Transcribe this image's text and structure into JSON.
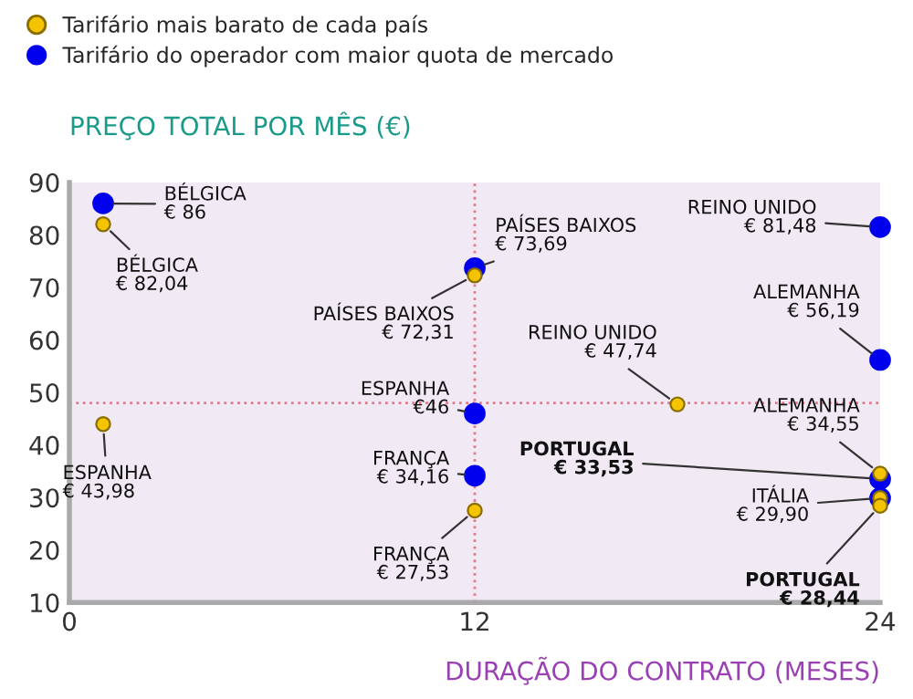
{
  "chart_data": {
    "type": "scatter",
    "xlabel": "DURAÇÃO DO CONTRATO (MESES)",
    "ylabel": "PREÇO TOTAL POR MÊS (€)",
    "xlim": [
      0,
      24
    ],
    "ylim": [
      10,
      90
    ],
    "xticks": [
      0,
      12,
      24
    ],
    "yticks": [
      10,
      20,
      30,
      40,
      50,
      60,
      70,
      80,
      90
    ],
    "grid": false,
    "legend": "top left",
    "marker": "circle",
    "series": [
      {
        "name": "Tarifário mais barato de cada país",
        "color": "#f5c400",
        "x": [
          1,
          1,
          12,
          12,
          18,
          24,
          24,
          24
        ],
        "values": [
          82.04,
          43.98,
          72.31,
          27.53,
          47.74,
          34.55,
          29.9,
          28.44
        ]
      },
      {
        "name": "Tarifário do operador com maior quota de mercado",
        "color": "#0000ee",
        "x": [
          1,
          12,
          12,
          12,
          24,
          24,
          24,
          24
        ],
        "values": [
          86,
          73.69,
          46,
          34.16,
          81.48,
          56.19,
          33.53,
          29.9
        ]
      }
    ],
    "ref_lines": [
      {
        "axis": "x",
        "value": 12,
        "color": "#e07a8a",
        "line_style": "dotted"
      },
      {
        "axis": "y",
        "value": 48,
        "color": "#e07a8a",
        "line_style": "dotted"
      }
    ],
    "annotations": [
      {
        "text": "BÉLGICA\n€ 82,04",
        "x": 1,
        "y": 82.04
      },
      {
        "text": "ESPANHA\n€ 43,98",
        "x": 1,
        "y": 43.98
      },
      {
        "text": "PAÍSES BAIXOS\n€ 72,31",
        "x": 12,
        "y": 72.31
      },
      {
        "text": "FRANÇA\n€ 27,53",
        "x": 12,
        "y": 27.53
      },
      {
        "text": "REINO UNIDO\n€ 47,74",
        "x": 18,
        "y": 47.74
      },
      {
        "text": "ALEMANHA\n€ 34,55",
        "x": 24,
        "y": 34.55
      },
      {
        "text": "ITÁLIA\n€ 29,90",
        "x": 24,
        "y": 29.9
      },
      {
        "text": "PORTUGAL\n€ 28,44",
        "x": 24,
        "y": 28.44
      },
      {
        "text": "BÉLGICA\n€ 86",
        "x": 1,
        "y": 86
      },
      {
        "text": "PAÍSES BAIXOS\n€ 73,69",
        "x": 12,
        "y": 73.69
      },
      {
        "text": "ESPANHA\n€46",
        "x": 12,
        "y": 46
      },
      {
        "text": "FRANÇA\n€ 34,16",
        "x": 12,
        "y": 34.16
      },
      {
        "text": "REINO UNIDO\n€ 81,48",
        "x": 24,
        "y": 81.48
      },
      {
        "text": "ALEMANHA\n€ 56,19",
        "x": 24,
        "y": 56.19
      },
      {
        "text": "PORTUGAL\n€ 33,53",
        "x": 24,
        "y": 33.53
      }
    ]
  }
}
